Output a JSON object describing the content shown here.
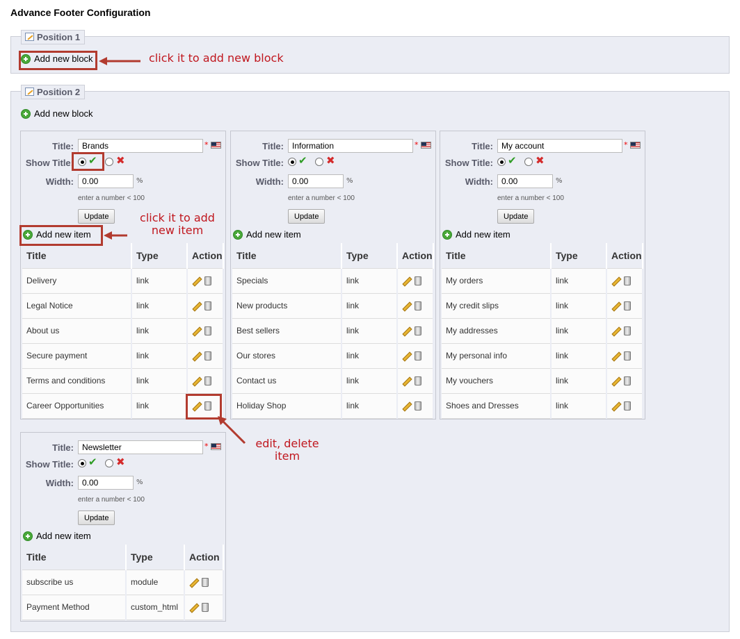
{
  "page_title": "Advance Footer Configuration",
  "position1": {
    "legend": "Position 1",
    "add_block": "Add new block"
  },
  "position2": {
    "legend": "Position 2",
    "add_block": "Add new block"
  },
  "form": {
    "title_label": "Title:",
    "show_title_label": "Show Title:",
    "width_label": "Width:",
    "pct": "%",
    "hint": "enter a number < 100",
    "update": "Update",
    "add_item": "Add new item",
    "required": "*"
  },
  "table_headers": {
    "title": "Title",
    "type": "Type",
    "action": "Action"
  },
  "blocks": [
    {
      "title": "Brands",
      "width": "0.00",
      "items": [
        {
          "title": "Delivery",
          "type": "link"
        },
        {
          "title": "Legal Notice",
          "type": "link"
        },
        {
          "title": "About us",
          "type": "link"
        },
        {
          "title": "Secure payment",
          "type": "link"
        },
        {
          "title": "Terms and conditions",
          "type": "link"
        },
        {
          "title": "Career Opportunities",
          "type": "link"
        }
      ]
    },
    {
      "title": "Information",
      "width": "0.00",
      "items": [
        {
          "title": "Specials",
          "type": "link"
        },
        {
          "title": "New products",
          "type": "link"
        },
        {
          "title": "Best sellers",
          "type": "link"
        },
        {
          "title": "Our stores",
          "type": "link"
        },
        {
          "title": "Contact us",
          "type": "link"
        },
        {
          "title": "Holiday Shop",
          "type": "link"
        }
      ]
    },
    {
      "title": "My account",
      "width": "0.00",
      "items": [
        {
          "title": "My orders",
          "type": "link"
        },
        {
          "title": "My credit slips",
          "type": "link"
        },
        {
          "title": "My addresses",
          "type": "link"
        },
        {
          "title": "My personal info",
          "type": "link"
        },
        {
          "title": "My vouchers",
          "type": "link"
        },
        {
          "title": "Shoes and Dresses",
          "type": "link"
        }
      ]
    },
    {
      "title": "Newsletter",
      "width": "0.00",
      "items": [
        {
          "title": "subscribe us",
          "type": "module"
        },
        {
          "title": "Payment Method",
          "type": "custom_html"
        }
      ]
    }
  ],
  "annotations": {
    "add_block": "click it to add new block",
    "add_item": "click it to add new item",
    "edit_delete": "edit, delete item"
  },
  "colors": {
    "accent_red": "#b23b2f",
    "note_red": "#c0171e",
    "panel": "#ebedf4"
  }
}
